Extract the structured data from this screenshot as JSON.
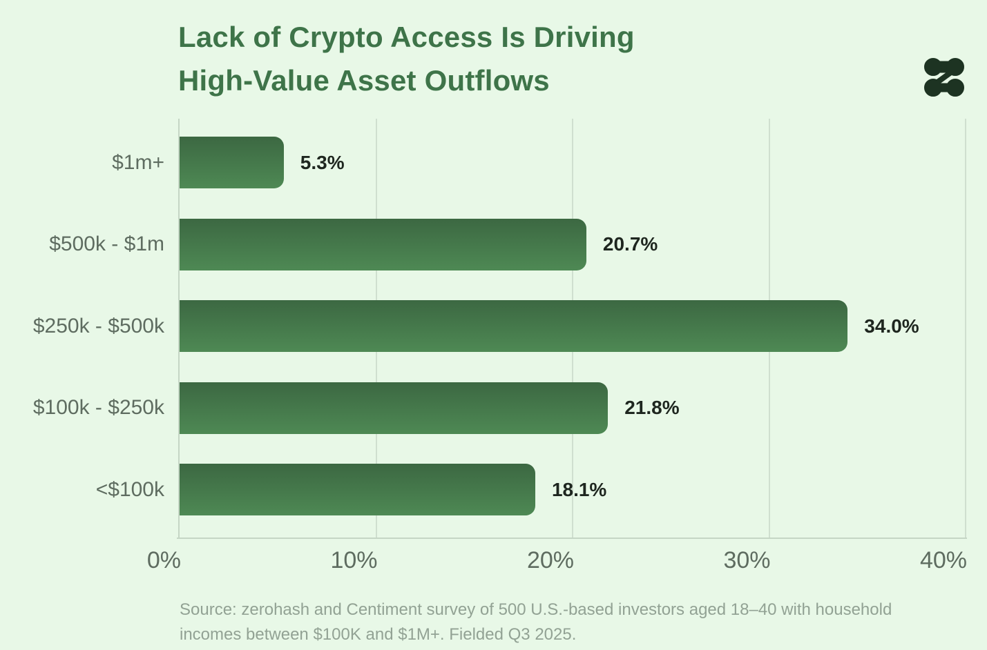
{
  "header": {
    "title_line1": "Lack of Crypto Access Is Driving",
    "title_line2": "High-Value Asset Outflows",
    "logo_name": "zerohash-logo"
  },
  "chart_data": {
    "type": "bar",
    "orientation": "horizontal",
    "title": "Lack of Crypto Access Is Driving High-Value Asset Outflows",
    "categories": [
      "$1m+",
      "$500k - $1m",
      "$250k - $500k",
      "$100k - $250k",
      "<$100k"
    ],
    "values": [
      5.3,
      20.7,
      34.0,
      21.8,
      18.1
    ],
    "value_labels": [
      "5.3%",
      "20.7%",
      "34.0%",
      "21.8%",
      "18.1%"
    ],
    "x_tick_values": [
      0,
      10,
      20,
      30,
      40
    ],
    "x_tick_labels": [
      "0%",
      "10%",
      "20%",
      "30%",
      "40%"
    ],
    "xlim": [
      0,
      40
    ],
    "grid": true,
    "legend": false,
    "xlabel": "",
    "ylabel": ""
  },
  "source": {
    "line1": "Source: zerohash and Centiment survey of 500 U.S.-based investors aged 18–40 with household",
    "line2": "incomes between $100K and $1M+. Fielded Q3 2025."
  },
  "colors": {
    "background": "#e8f8e7",
    "title_text": "#3e7449",
    "bar_gradient_top": "#3c6842",
    "bar_gradient_bottom": "#4e8954",
    "value_text": "#1e261f",
    "axis_text": "#5e6c60",
    "gridline": "#cfdfcf",
    "axis_line": "#c5d6c5",
    "source_text": "#92a294",
    "logo": "#1d3322"
  }
}
